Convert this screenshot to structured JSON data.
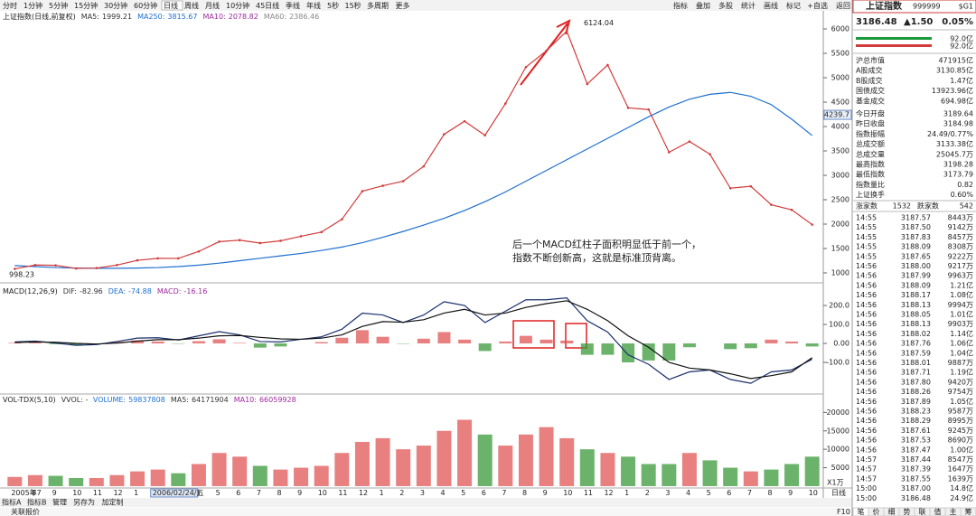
{
  "toolbar": {
    "periods": [
      "分时",
      "1分钟",
      "5分钟",
      "15分钟",
      "30分钟",
      "60分钟",
      "日线",
      "周线",
      "月线",
      "10分钟",
      "45日线",
      "季线",
      "年线",
      "5秒",
      "15秒",
      "多周期",
      "更多"
    ],
    "active": 6,
    "tools": [
      "指标",
      "叠加",
      "多股",
      "统计",
      "画线",
      "标记",
      "+自选",
      "返回"
    ]
  },
  "chart_data": [
    {
      "type": "line",
      "title": "上证指数(日线,前复权)",
      "indicators": [
        {
          "name": "MA5:",
          "value": 1999.21,
          "color": "#333333"
        },
        {
          "name": "MA250:",
          "value": 3815.67,
          "color": "#1e6fd0"
        },
        {
          "name": "MA10:",
          "value": 2078.82,
          "color": "#9c2a9c"
        },
        {
          "name": "MA60:",
          "value": 2386.46,
          "color": "#888888"
        }
      ],
      "categories": [
        "2005年7",
        "8",
        "9",
        "10",
        "11",
        "12",
        "1",
        "2",
        "3",
        "4",
        "5",
        "6",
        "7",
        "8",
        "9",
        "10",
        "11",
        "12",
        "1",
        "2",
        "3",
        "4",
        "5",
        "6",
        "7",
        "8",
        "9",
        "10",
        "11",
        "12",
        "1",
        "2",
        "3",
        "4",
        "5",
        "6",
        "7",
        "8",
        "9",
        "10"
      ],
      "cursor_date": "2006/02/24/五",
      "cursor_price": 4239.7,
      "high": 6124.04,
      "low": 998.23,
      "series": [
        {
          "name": "close",
          "color": "#d23c3c",
          "values": [
            1083,
            1162,
            1155,
            1092,
            1099,
            1161,
            1258,
            1299,
            1298,
            1440,
            1641,
            1672,
            1612,
            1658,
            1752,
            1837,
            2099,
            2675,
            2786,
            2881,
            3183,
            3841,
            4109,
            3820,
            4471,
            5218,
            5552,
            5954,
            4871,
            5261,
            4383,
            4348,
            3473,
            3693,
            3433,
            2736,
            2775,
            2397,
            2293,
            1990
          ]
        },
        {
          "name": "MA250",
          "color": "#1e6fd0",
          "values": [
            1150,
            1130,
            1110,
            1100,
            1095,
            1095,
            1100,
            1110,
            1130,
            1160,
            1200,
            1250,
            1300,
            1350,
            1400,
            1460,
            1530,
            1620,
            1730,
            1850,
            1980,
            2120,
            2280,
            2460,
            2660,
            2880,
            3100,
            3320,
            3540,
            3760,
            3980,
            4200,
            4400,
            4560,
            4660,
            4700,
            4620,
            4450,
            4150,
            3816
          ]
        }
      ],
      "ylim": [
        815,
        6130
      ],
      "yticks": [
        1000,
        1500,
        2000,
        2500,
        3000,
        3500,
        4000,
        4500,
        5000,
        5500,
        6000
      ],
      "annotation": [
        "后一个MACD红柱子面积明显低于前一个，",
        "指数不断创新高，这就是标准顶背离。"
      ]
    },
    {
      "type": "macd",
      "title": "MACD(12,26,9)",
      "indicators": [
        {
          "name": "DIF:",
          "value": -82.96,
          "color": "#333333"
        },
        {
          "name": "DEA:",
          "value": -74.88,
          "color": "#1e6fd0"
        },
        {
          "name": "MACD:",
          "value": -16.16,
          "color": "#9c2a9c"
        }
      ],
      "series": [
        {
          "name": "DIF",
          "color": "#1a2f6b",
          "values": [
            8,
            12,
            2,
            -10,
            -6,
            10,
            28,
            30,
            18,
            40,
            62,
            45,
            10,
            8,
            22,
            35,
            75,
            160,
            150,
            110,
            150,
            220,
            200,
            110,
            170,
            230,
            230,
            240,
            120,
            60,
            -60,
            -110,
            -190,
            -150,
            -140,
            -190,
            -210,
            -150,
            -140,
            -83
          ]
        },
        {
          "name": "DEA",
          "color": "#111111",
          "values": [
            5,
            8,
            6,
            0,
            -3,
            2,
            12,
            20,
            20,
            28,
            40,
            42,
            32,
            24,
            22,
            28,
            45,
            90,
            115,
            112,
            125,
            160,
            180,
            150,
            160,
            190,
            210,
            225,
            180,
            120,
            40,
            -20,
            -100,
            -130,
            -140,
            -160,
            -185,
            -170,
            -150,
            -75
          ]
        },
        {
          "name": "MACD",
          "color": "#e05555",
          "values": [
            3,
            4,
            -4,
            -10,
            -3,
            8,
            16,
            10,
            -2,
            12,
            22,
            3,
            -22,
            -16,
            0,
            7,
            30,
            70,
            35,
            -2,
            25,
            60,
            20,
            -40,
            10,
            40,
            20,
            15,
            -60,
            -60,
            -100,
            -90,
            -90,
            -20,
            0,
            -30,
            -25,
            20,
            10,
            -16
          ]
        }
      ],
      "ylim": [
        -262,
        310
      ],
      "yticks": [
        {
          "value": 200,
          "label": "200.0"
        },
        {
          "value": 100,
          "label": "100.0"
        },
        {
          "value": 0,
          "label": "0.00"
        },
        {
          "value": -100,
          "label": "-100.0"
        }
      ]
    },
    {
      "type": "volume",
      "title": "VOL-TDX(5,10)",
      "indicators": [
        {
          "name": "VVOL: -",
          "value": null,
          "color": "#333333"
        },
        {
          "name": "VOLUME:",
          "value": 59837808,
          "color": "#1e6fd0"
        },
        {
          "name": "MA5:",
          "value": 64171904,
          "color": "#333333"
        },
        {
          "name": "MA10:",
          "value": 66059928,
          "color": "#9c2a9c"
        }
      ],
      "series": [
        {
          "name": "VOLUME",
          "color": "#e05555",
          "values": [
            2500,
            3000,
            2800,
            2200,
            2200,
            3000,
            4000,
            4500,
            3500,
            6000,
            9000,
            8000,
            5500,
            4500,
            5000,
            5500,
            9000,
            12000,
            13000,
            10000,
            11000,
            15000,
            18000,
            14000,
            11000,
            14000,
            16000,
            13000,
            10000,
            9000,
            8000,
            6000,
            6000,
            9000,
            7000,
            5000,
            4000,
            4500,
            6000,
            8000
          ]
        }
      ],
      "ylim": [
        -500,
        24500
      ],
      "yticks": [
        5000,
        10000,
        15000,
        20000
      ],
      "unit": "X1万"
    }
  ],
  "bottom": {
    "tabs": [
      "指标A",
      "指标B",
      "管理",
      "另存为",
      "加定制"
    ],
    "active": 2,
    "period": "日线",
    "link": "关联报价",
    "f10": "F10"
  },
  "quote": {
    "tag": "$G1",
    "name": "上证指数",
    "code": "999999",
    "price": "3186.48",
    "change": "▲1.50",
    "percent": "0.05%",
    "bars": [
      "92.0亿",
      "92.0亿"
    ],
    "stats": [
      {
        "label": "沪总市值",
        "value": "471915亿"
      },
      {
        "label": "A股成交",
        "value": "3130.85亿"
      },
      {
        "label": "B股成交",
        "value": "1.47亿"
      },
      {
        "label": "国债成交",
        "value": "13923.96亿"
      },
      {
        "label": "基金成交",
        "value": "694.98亿"
      },
      {
        "label": "今日开盘",
        "value": "3189.64",
        "color": "#d23c3c"
      },
      {
        "label": "昨日收盘",
        "value": "3184.98"
      },
      {
        "label": "指数振幅",
        "value": "24.49/0.77%"
      },
      {
        "label": "总成交额",
        "value": "3133.38亿"
      },
      {
        "label": "总成交量",
        "value": "25045.7万"
      },
      {
        "label": "最高指数",
        "value": "3198.28",
        "color": "#d23c3c"
      },
      {
        "label": "最低指数",
        "value": "3173.79",
        "color": "#1a9a3a"
      },
      {
        "label": "指数量比",
        "value": "0.82",
        "color": "#d23c3c"
      },
      {
        "label": "上证换手",
        "value": "0.60%"
      }
    ],
    "up_label": "涨家数",
    "up": "1532",
    "down_label": "跌家数",
    "down": "542",
    "ticks": [
      [
        "14:55",
        "3187.57",
        "8443万"
      ],
      [
        "14:55",
        "3187.50",
        "9142万"
      ],
      [
        "14:55",
        "3187.83",
        "8457万"
      ],
      [
        "14:55",
        "3188.09",
        "8308万"
      ],
      [
        "14:55",
        "3187.65",
        "9222万"
      ],
      [
        "14:56",
        "3188.00",
        "9217万"
      ],
      [
        "14:56",
        "3187.99",
        "9963万"
      ],
      [
        "14:56",
        "3188.09",
        "1.21亿"
      ],
      [
        "14:56",
        "3188.17",
        "1.08亿"
      ],
      [
        "14:56",
        "3188.13",
        "9994万"
      ],
      [
        "14:56",
        "3188.05",
        "1.01亿"
      ],
      [
        "14:56",
        "3188.13",
        "9903万"
      ],
      [
        "14:56",
        "3188.02",
        "1.14亿"
      ],
      [
        "14:56",
        "3187.76",
        "1.06亿"
      ],
      [
        "14:56",
        "3187.59",
        "1.04亿"
      ],
      [
        "14:56",
        "3188.01",
        "9887万"
      ],
      [
        "14:56",
        "3187.71",
        "1.19亿"
      ],
      [
        "14:56",
        "3187.80",
        "9420万"
      ],
      [
        "14:56",
        "3188.26",
        "9754万"
      ],
      [
        "14:56",
        "3187.89",
        "1.05亿"
      ],
      [
        "14:56",
        "3188.23",
        "9587万"
      ],
      [
        "14:56",
        "3188.29",
        "8995万"
      ],
      [
        "14:56",
        "3187.61",
        "9245万"
      ],
      [
        "14:56",
        "3187.53",
        "8690万"
      ],
      [
        "14:56",
        "3187.47",
        "1.00亿"
      ],
      [
        "14:57",
        "3187.44",
        "8547万"
      ],
      [
        "14:57",
        "3187.39",
        "1647万"
      ],
      [
        "14:57",
        "3187.55",
        "1639万"
      ],
      [
        "15:00",
        "3187.00",
        "14.8亿"
      ],
      [
        "15:00",
        "3186.48",
        "24.9亿"
      ]
    ],
    "tabs": [
      "笔",
      "价",
      "细",
      "势",
      "联",
      "值",
      "主",
      "筹"
    ]
  }
}
